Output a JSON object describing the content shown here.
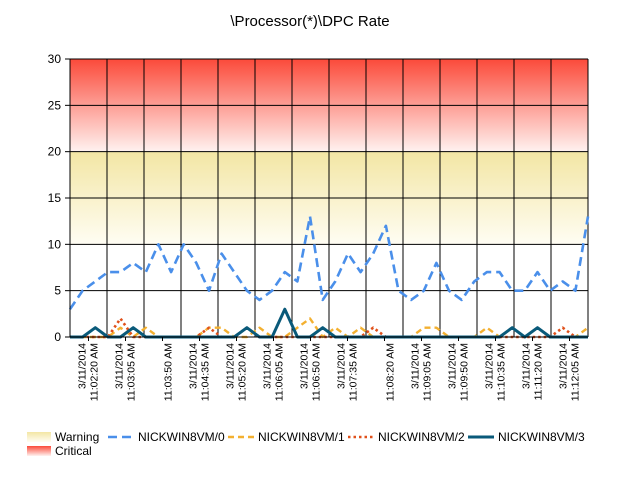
{
  "chart_data": {
    "type": "line",
    "title": "\\Processor(*)\\DPC Rate",
    "xlabel": "",
    "ylabel": "",
    "ylim": [
      0,
      30
    ],
    "yticks": [
      0,
      5,
      10,
      15,
      20,
      25,
      30
    ],
    "grid": true,
    "x_tick_labels": [
      {
        "date": "3/11/2014",
        "time": "11:02:20 AM"
      },
      {
        "date": "3/11/2014",
        "time": "11:03:05 AM"
      },
      {
        "date": "",
        "time": "11:03:50 AM"
      },
      {
        "date": "3/11/2014",
        "time": "11:04:35 AM"
      },
      {
        "date": "3/11/2014",
        "time": "11:05:20 AM"
      },
      {
        "date": "3/11/2014",
        "time": "11:06:05 AM"
      },
      {
        "date": "3/11/2014",
        "time": "11:06:50 AM"
      },
      {
        "date": "3/11/2014",
        "time": "11:07:35 AM"
      },
      {
        "date": "",
        "time": "11:08:20 AM"
      },
      {
        "date": "3/11/2014",
        "time": "11:09:05 AM"
      },
      {
        "date": "3/11/2014",
        "time": "11:09:50 AM"
      },
      {
        "date": "3/11/2014",
        "time": "11:10:35 AM"
      },
      {
        "date": "3/11/2014",
        "time": "11:11:20 AM"
      },
      {
        "date": "3/11/2014",
        "time": "11:12:05 AM"
      }
    ],
    "bands": [
      {
        "name": "Warning",
        "from": 10,
        "to": 20,
        "color_top": "#f3e6a4",
        "color_bottom": "#fffdf3"
      },
      {
        "name": "Critical",
        "from": 20,
        "to": 30,
        "color_top": "#fb4a3a",
        "color_bottom": "#fff2f0"
      }
    ],
    "series": [
      {
        "name": "NICKWIN8VM/0",
        "color": "#4a8fea",
        "dash": "9,5",
        "width": 2.6,
        "values": [
          3,
          5,
          6,
          7,
          7,
          8,
          7,
          10,
          7,
          10,
          8,
          5,
          9,
          7,
          5,
          4,
          5,
          7,
          6,
          13,
          4,
          6,
          9,
          7,
          9,
          12,
          5,
          4,
          5,
          8,
          5,
          4,
          6,
          7,
          7,
          5,
          5,
          7,
          5,
          6,
          5,
          13
        ]
      },
      {
        "name": "NICKWIN8VM/1",
        "color": "#f3b030",
        "dash": "6,4",
        "width": 2.4,
        "values": [
          0,
          0,
          0,
          0,
          1,
          0,
          1,
          0,
          0,
          0,
          0,
          1,
          1,
          0,
          0,
          1,
          0,
          0,
          1,
          2,
          0,
          1,
          0,
          1,
          0,
          0,
          0,
          0,
          1,
          1,
          0,
          0,
          0,
          1,
          0,
          1,
          0,
          1,
          0,
          0,
          0,
          1
        ]
      },
      {
        "name": "NICKWIN8VM/2",
        "color": "#e0501a",
        "dash": "2.5,3",
        "width": 2.6,
        "values": [
          0,
          0,
          0,
          0,
          2,
          0,
          0,
          0,
          0,
          0,
          0,
          1,
          0,
          0,
          1,
          0,
          0,
          0,
          0,
          0,
          0,
          0,
          0,
          0,
          1,
          0,
          0,
          0,
          0,
          0,
          0,
          0,
          0,
          0,
          0,
          0,
          0,
          0,
          0,
          1,
          0,
          0
        ]
      },
      {
        "name": "NICKWIN8VM/3",
        "color": "#0a5a7a",
        "dash": "",
        "width": 3,
        "values": [
          0,
          0,
          1,
          0,
          0,
          1,
          0,
          0,
          0,
          0,
          0,
          0,
          0,
          0,
          1,
          0,
          0,
          3,
          0,
          0,
          1,
          0,
          0,
          0,
          0,
          0,
          0,
          0,
          0,
          0,
          0,
          0,
          0,
          0,
          0,
          1,
          0,
          1,
          0,
          0,
          0,
          0
        ]
      }
    ]
  },
  "legend": {
    "band_labels": [
      "Warning",
      "Critical"
    ],
    "series_labels": [
      "NICKWIN8VM/0",
      "NICKWIN8VM/1",
      "NICKWIN8VM/2",
      "NICKWIN8VM/3"
    ]
  }
}
